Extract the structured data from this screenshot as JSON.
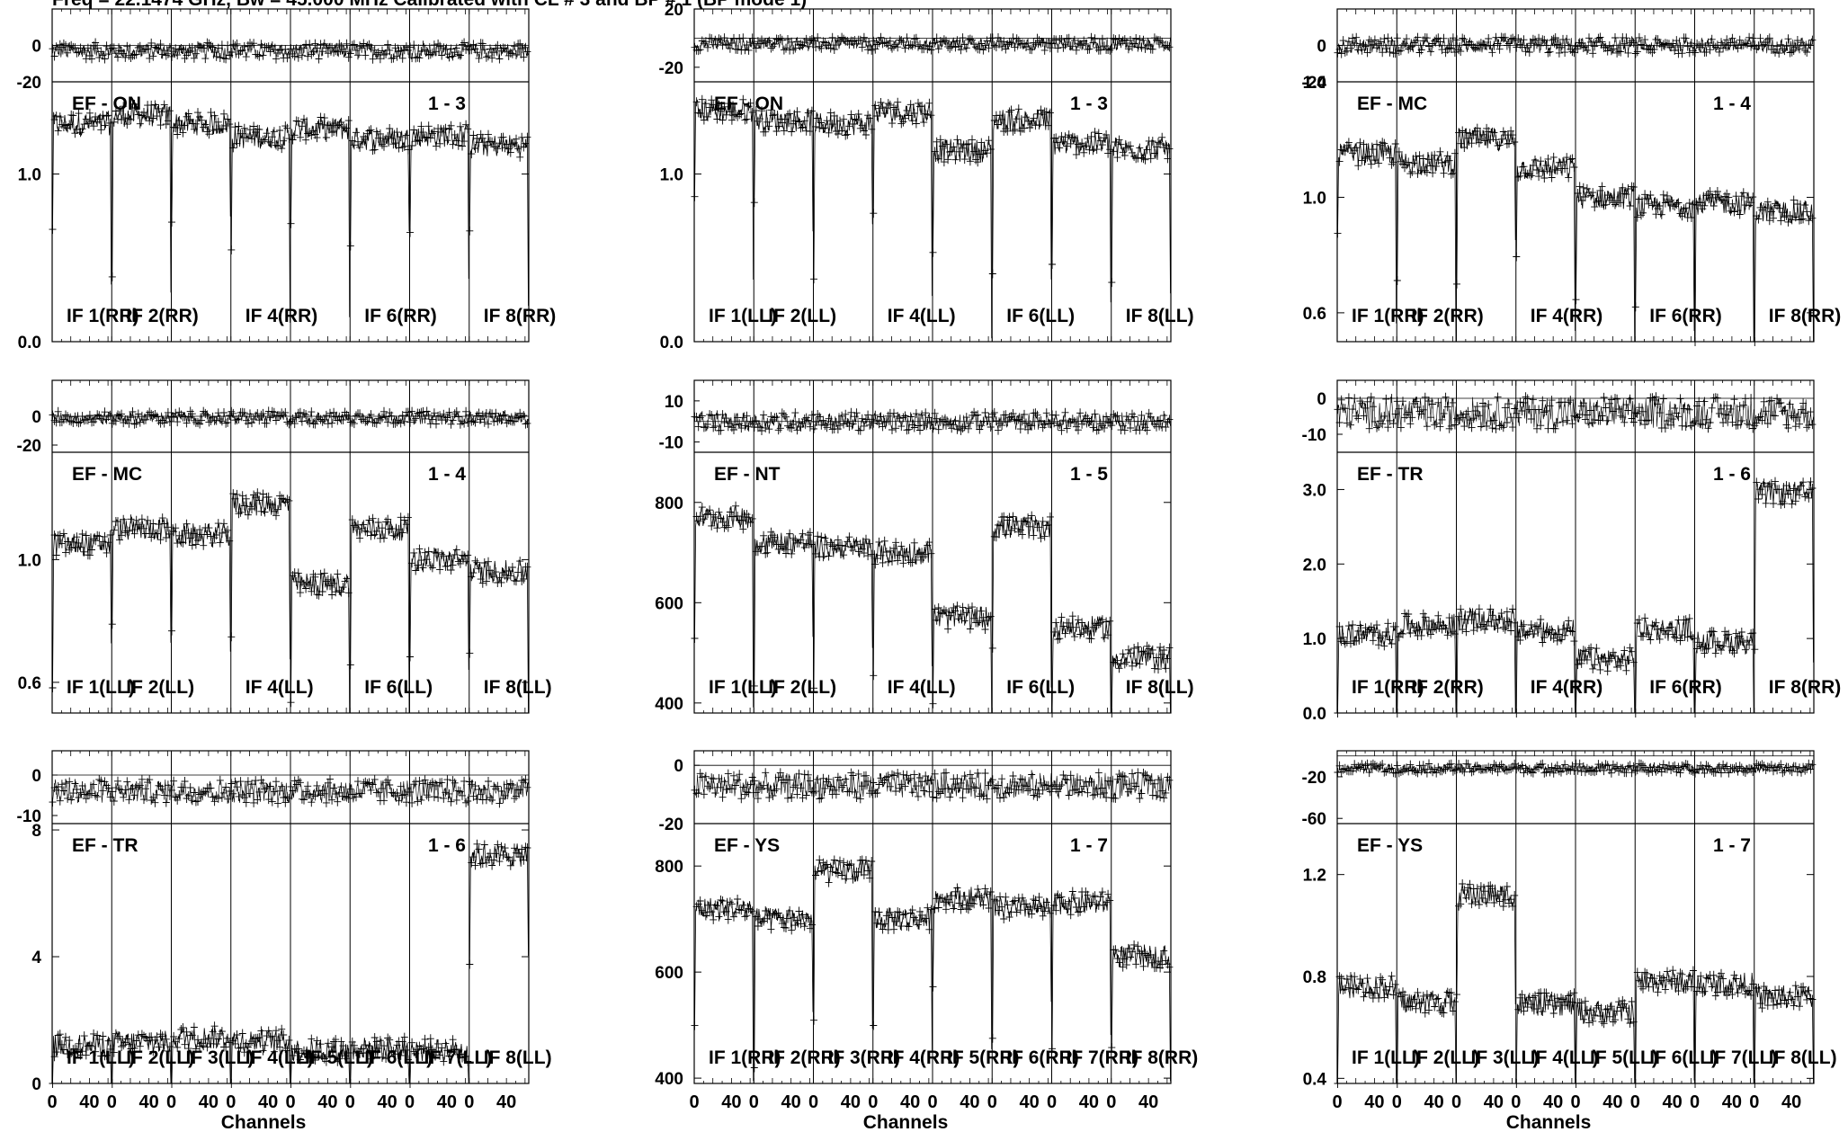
{
  "header_text": "Freq = 22.1474 GHz, Bw = 45.000 MHz Calibrated with CL # 3 and BP # 1 (BP mode 1)",
  "channels_label": "Channels",
  "chart_data": [
    {
      "type": "line",
      "col": 0,
      "row": 0,
      "baseline": "EF",
      "station": "ON",
      "range": "1 - 3",
      "pol": "RR",
      "phase_ticks": [
        "0",
        "-20"
      ],
      "phase_range": [
        -20,
        20
      ],
      "phase_level": -3,
      "phase_spread": 3,
      "amp_ticks": [
        "1.0",
        "0.0"
      ],
      "amp_range": [
        0,
        1.55
      ],
      "if_labels": [
        "IF 1(RR)",
        "IF 2(RR)",
        "",
        "IF 4(RR)",
        "",
        "IF 6(RR)",
        "",
        "IF 8(RR)"
      ],
      "amps": [
        1.3,
        1.35,
        1.3,
        1.22,
        1.27,
        1.21,
        1.23,
        1.17
      ]
    },
    {
      "type": "line",
      "col": 1,
      "row": 0,
      "baseline": "EF",
      "station": "ON",
      "range": "1 - 3",
      "pol": "LL",
      "phase_ticks": [
        "20",
        "-20"
      ],
      "phase_range": [
        -30,
        20
      ],
      "phase_level": -4,
      "phase_spread": 3,
      "amp_ticks": [
        "1.0",
        "0.0"
      ],
      "amp_range": [
        0,
        1.55
      ],
      "if_labels": [
        "IF 1(LL)",
        "IF 2(LL)",
        "",
        "IF 4(LL)",
        "",
        "IF 6(LL)",
        "",
        "IF 8(LL)"
      ],
      "amps": [
        1.38,
        1.32,
        1.3,
        1.37,
        1.14,
        1.32,
        1.18,
        1.15
      ]
    },
    {
      "type": "line",
      "col": 2,
      "row": 0,
      "baseline": "EF",
      "station": "MC",
      "range": "1 - 4",
      "pol": "RR",
      "phase_ticks": [
        "0",
        "-20"
      ],
      "phase_range": [
        -20,
        20
      ],
      "phase_level": 0,
      "phase_spread": 3,
      "amp_ticks": [
        "1.4",
        "1.0",
        "0.6"
      ],
      "amp_range": [
        0.5,
        1.4
      ],
      "if_labels": [
        "IF 1(RR)",
        "IF 2(RR)",
        "",
        "IF 4(RR)",
        "",
        "IF 6(RR)",
        "",
        "IF 8(RR)"
      ],
      "amps": [
        1.15,
        1.12,
        1.2,
        1.1,
        1.0,
        0.97,
        0.98,
        0.95
      ]
    },
    {
      "type": "line",
      "col": 0,
      "row": 1,
      "baseline": "EF",
      "station": "MC",
      "range": "1 - 4",
      "pol": "LL",
      "phase_ticks": [
        "0",
        "-20"
      ],
      "phase_range": [
        -25,
        25
      ],
      "phase_level": -1,
      "phase_spread": 3,
      "amp_ticks": [
        "1.0",
        "0.6"
      ],
      "amp_range": [
        0.5,
        1.35
      ],
      "if_labels": [
        "IF 1(LL)",
        "IF 2(LL)",
        "",
        "IF 4(LL)",
        "",
        "IF 6(LL)",
        "",
        "IF 8(LL)"
      ],
      "amps": [
        1.05,
        1.1,
        1.08,
        1.18,
        0.92,
        1.1,
        1.0,
        0.96
      ]
    },
    {
      "type": "line",
      "col": 1,
      "row": 1,
      "baseline": "EF",
      "station": "NT",
      "range": "1 - 5",
      "pol": "LL",
      "phase_ticks": [
        "10",
        "-10"
      ],
      "phase_range": [
        -15,
        20
      ],
      "phase_level": 0,
      "phase_spread": 3,
      "amp_ticks": [
        "800",
        "600",
        "400"
      ],
      "amp_range": [
        380,
        900
      ],
      "if_labels": [
        "IF 1(LL)",
        "IF 2(LL)",
        "",
        "IF 4(LL)",
        "",
        "IF 6(LL)",
        "",
        "IF 8(LL)"
      ],
      "amps": [
        770,
        720,
        710,
        700,
        570,
        750,
        550,
        490
      ]
    },
    {
      "type": "line",
      "col": 2,
      "row": 1,
      "baseline": "EF",
      "station": "TR",
      "range": "1 - 6",
      "pol": "RR",
      "phase_ticks": [
        "0",
        "-10"
      ],
      "phase_range": [
        -15,
        5
      ],
      "phase_level": -4,
      "phase_spread": 3,
      "amp_ticks": [
        "3.0",
        "2.0",
        "1.0",
        "0.0"
      ],
      "amp_range": [
        0,
        3.5
      ],
      "if_labels": [
        "IF 1(RR)",
        "IF 2(RR)",
        "",
        "IF 4(RR)",
        "",
        "IF 6(RR)",
        "",
        "IF 8(RR)"
      ],
      "amps": [
        1.05,
        1.18,
        1.25,
        1.1,
        0.72,
        1.12,
        0.95,
        2.95
      ]
    },
    {
      "type": "line",
      "col": 0,
      "row": 2,
      "baseline": "EF",
      "station": "TR",
      "range": "1 - 6",
      "pol": "LL",
      "phase_ticks": [
        "0",
        "-10"
      ],
      "phase_range": [
        -12,
        6
      ],
      "phase_level": -4,
      "phase_spread": 2,
      "amp_ticks": [
        "8",
        "4",
        "0"
      ],
      "amp_range": [
        0,
        8.2
      ],
      "if_labels": [
        "IF 1(LL)",
        "IF 2(LL)",
        "IF 3(LL)",
        "IF 4(LL)",
        "IF 5(LL)",
        "IF 6(LL)",
        "IF 7(LL)",
        "IF 8(LL)"
      ],
      "amps": [
        1.2,
        1.3,
        1.45,
        1.35,
        1.05,
        1.1,
        1.05,
        7.2
      ]
    },
    {
      "type": "line",
      "col": 1,
      "row": 2,
      "baseline": "EF",
      "station": "YS",
      "range": "1 - 7",
      "pol": "RR",
      "phase_ticks": [
        "0",
        "-20"
      ],
      "phase_range": [
        -20,
        5
      ],
      "phase_level": -7,
      "phase_spread": 3,
      "amp_ticks": [
        "800",
        "600",
        "400"
      ],
      "amp_range": [
        390,
        880
      ],
      "if_labels": [
        "IF 1(RR)",
        "IF 2(RR)",
        "IF 3(RR)",
        "IF 4(RR)",
        "IF 5(RR)",
        "IF 6(RR)",
        "IF 7(RR)",
        "IF 8(RR)"
      ],
      "amps": [
        720,
        700,
        790,
        700,
        740,
        720,
        730,
        630
      ]
    },
    {
      "type": "line",
      "col": 2,
      "row": 2,
      "baseline": "EF",
      "station": "YS",
      "range": "1 - 7",
      "pol": "LL",
      "phase_ticks": [
        "-20",
        "-60"
      ],
      "phase_range": [
        -65,
        5
      ],
      "phase_level": -12,
      "phase_spread": 3,
      "amp_ticks": [
        "1.2",
        "0.8",
        "0.4"
      ],
      "amp_range": [
        0.38,
        1.4
      ],
      "if_labels": [
        "IF 1(LL)",
        "IF 2(LL)",
        "IF 3(LL)",
        "IF 4(LL)",
        "IF 5(LL)",
        "IF 6(LL)",
        "IF 7(LL)",
        "IF 8(LL)"
      ],
      "amps": [
        0.76,
        0.7,
        1.12,
        0.69,
        0.66,
        0.78,
        0.77,
        0.72
      ]
    }
  ],
  "channel_ticks": [
    "0",
    "40"
  ],
  "style": {
    "ink": "#000000",
    "background": "#ffffff"
  }
}
